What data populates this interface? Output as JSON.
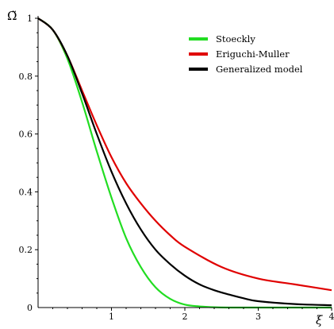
{
  "chart_data": {
    "type": "line",
    "title": "",
    "xlabel": "ξ",
    "ylabel": "Ω̃",
    "xlim": [
      0,
      4
    ],
    "ylim": [
      0,
      1
    ],
    "xticks": [
      "1",
      "2",
      "3",
      "4"
    ],
    "yticks": [
      "0",
      "0.2",
      "0.4",
      "0.6",
      "0.8",
      "1"
    ],
    "grid": false,
    "legend_position": "top-right",
    "series": [
      {
        "name": "Stoeckly",
        "color": "#22dd22",
        "x": [
          0,
          0.2,
          0.4,
          0.6,
          0.8,
          1.0,
          1.2,
          1.4,
          1.6,
          1.8,
          2.0,
          2.2,
          2.4,
          2.6,
          3.0,
          3.5,
          4.0
        ],
        "y": [
          1.0,
          0.96,
          0.86,
          0.71,
          0.54,
          0.38,
          0.24,
          0.14,
          0.07,
          0.03,
          0.01,
          0.004,
          0.001,
          0.0,
          0.0,
          0.0,
          0.0
        ]
      },
      {
        "name": "Eriguchi-Muller",
        "color": "#e00000",
        "x": [
          0,
          0.2,
          0.4,
          0.6,
          0.8,
          1.0,
          1.2,
          1.4,
          1.6,
          1.8,
          2.0,
          2.5,
          3.0,
          3.5,
          4.0
        ],
        "y": [
          1.0,
          0.96,
          0.87,
          0.75,
          0.63,
          0.52,
          0.43,
          0.36,
          0.3,
          0.25,
          0.21,
          0.14,
          0.1,
          0.08,
          0.06
        ]
      },
      {
        "name": "Generalized model",
        "color": "#000000",
        "x": [
          0,
          0.2,
          0.4,
          0.6,
          0.8,
          1.0,
          1.2,
          1.4,
          1.6,
          1.8,
          2.0,
          2.2,
          2.4,
          2.6,
          2.8,
          3.0,
          3.5,
          4.0
        ],
        "y": [
          1.0,
          0.96,
          0.87,
          0.74,
          0.6,
          0.47,
          0.36,
          0.27,
          0.2,
          0.15,
          0.11,
          0.08,
          0.06,
          0.045,
          0.032,
          0.022,
          0.012,
          0.008
        ]
      }
    ]
  }
}
